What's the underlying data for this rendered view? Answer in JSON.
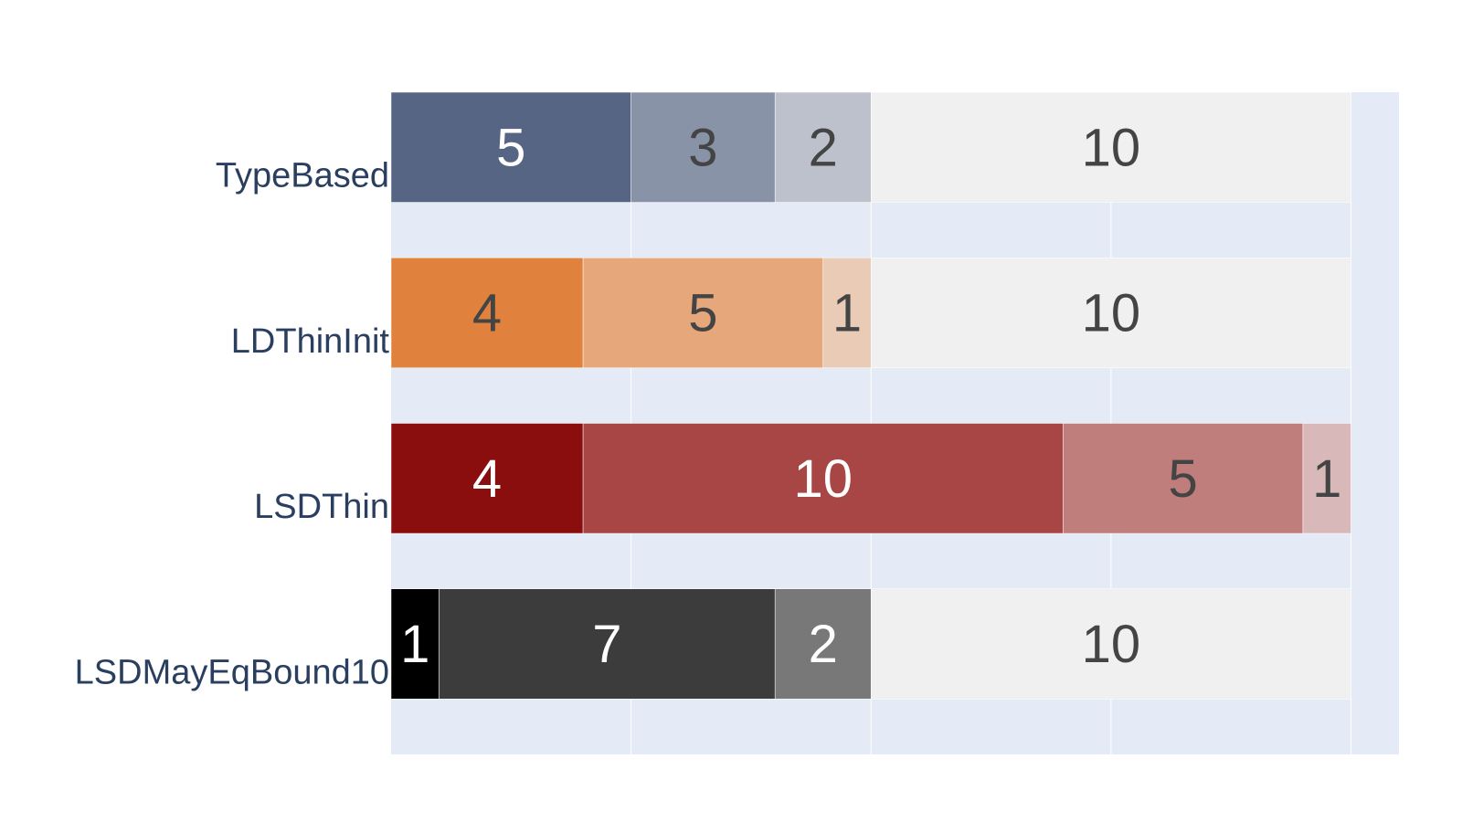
{
  "chart_data": {
    "type": "bar",
    "orientation": "horizontal",
    "stacked": true,
    "categories": [
      "TypeBased",
      "LDThinInit",
      "LSDThin",
      "LSDMayEqBound10"
    ],
    "xlim": [
      0,
      21
    ],
    "grid": true,
    "legend": "none",
    "rows": [
      {
        "category": "TypeBased",
        "segments": [
          {
            "value": 5,
            "color": "#566584",
            "label_color": "#ffffff"
          },
          {
            "value": 3,
            "color": "#8993a8",
            "label_color": "#444444"
          },
          {
            "value": 2,
            "color": "#bdc1cc",
            "label_color": "#444444"
          },
          {
            "value": 10,
            "color": "#eff0ef",
            "label_color": "#444444"
          }
        ]
      },
      {
        "category": "LDThinInit",
        "segments": [
          {
            "value": 4,
            "color": "#e0823e",
            "label_color": "#444444"
          },
          {
            "value": 5,
            "color": "#e6a87b",
            "label_color": "#444444"
          },
          {
            "value": 1,
            "color": "#eacbb6",
            "label_color": "#444444"
          },
          {
            "value": 10,
            "color": "#eff0ef",
            "label_color": "#444444"
          }
        ]
      },
      {
        "category": "LSDThin",
        "segments": [
          {
            "value": 4,
            "color": "#8b0e0e",
            "label_color": "#ffffff"
          },
          {
            "value": 10,
            "color": "#a84646",
            "label_color": "#ffffff"
          },
          {
            "value": 5,
            "color": "#bf7d7c",
            "label_color": "#444444"
          },
          {
            "value": 1,
            "color": "#d9b8b9",
            "label_color": "#444444"
          }
        ]
      },
      {
        "category": "LSDMayEqBound10",
        "segments": [
          {
            "value": 1,
            "color": "#000000",
            "label_color": "#ffffff"
          },
          {
            "value": 7,
            "color": "#3c3c3c",
            "label_color": "#ffffff"
          },
          {
            "value": 2,
            "color": "#787878",
            "label_color": "#ffffff"
          },
          {
            "value": 10,
            "color": "#eff0ef",
            "label_color": "#444444"
          }
        ]
      }
    ]
  },
  "colors": {
    "plot_background": "#e5ebf6",
    "gridline": "#ffffff",
    "axis_label": "#2a3f5f"
  }
}
